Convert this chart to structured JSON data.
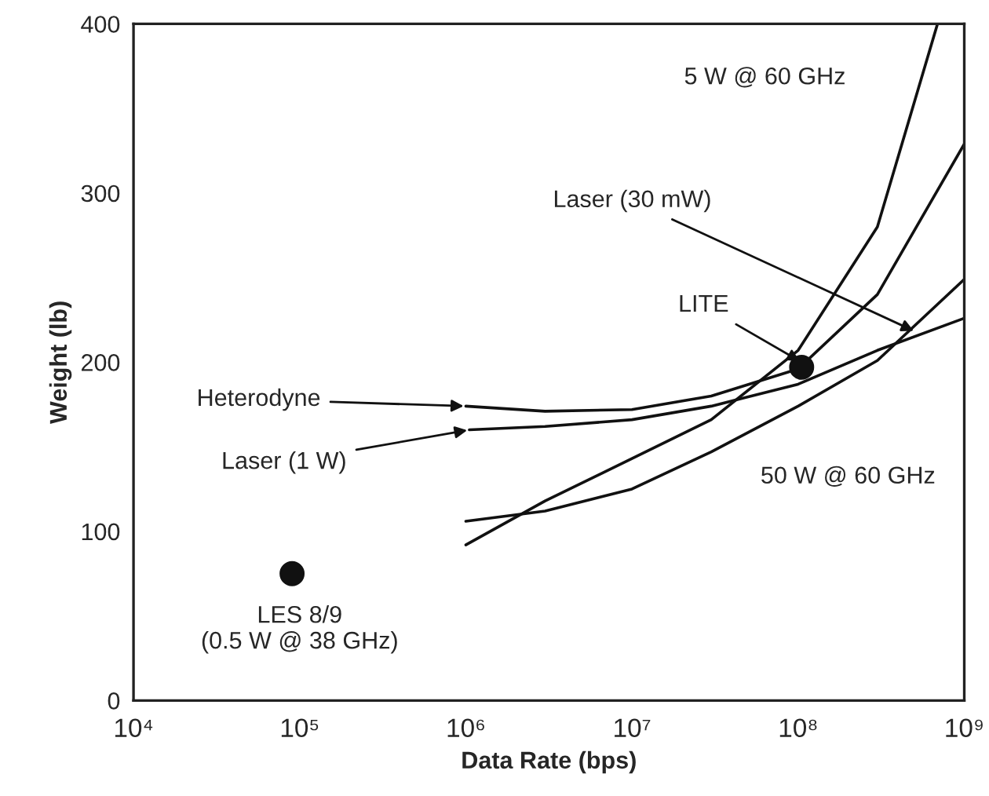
{
  "chart_data": {
    "type": "line",
    "xlabel": "Data Rate (bps)",
    "ylabel": "Weight (lb)",
    "log": "x",
    "grid": false,
    "legend": false,
    "xlim": [
      10000,
      1000000000
    ],
    "xticks": [
      {
        "value": 10000,
        "label": "10⁴"
      },
      {
        "value": 100000,
        "label": "10⁵"
      },
      {
        "value": 1000000,
        "label": "10⁶"
      },
      {
        "value": 10000000,
        "label": "10⁷"
      },
      {
        "value": 100000000,
        "label": "10⁸"
      },
      {
        "value": 1000000000,
        "label": "10⁹"
      }
    ],
    "ylim": [
      0,
      400
    ],
    "yticks": [
      0,
      100,
      200,
      300,
      400
    ],
    "series": [
      {
        "color": "#111111",
        "x": [
          1000000,
          3000000,
          10000000,
          30000000,
          100000000,
          300000000,
          1000000000
        ],
        "values": [
          174,
          171,
          172,
          180,
          196,
          240,
          329
        ]
      },
      {
        "color": "#111111",
        "x": [
          1050000,
          3000000,
          10000000,
          30000000,
          100000000,
          300000000,
          1000000000
        ],
        "values": [
          160,
          162,
          166,
          174,
          187,
          207,
          226
        ]
      },
      {
        "color": "#111111",
        "x": [
          1000000,
          3000000,
          10000000,
          30000000,
          100000000,
          300000000,
          690000000
        ],
        "values": [
          92,
          118,
          143,
          166,
          207,
          280,
          400
        ]
      },
      {
        "color": "#111111",
        "x": [
          1000000,
          3000000,
          10000000,
          30000000,
          100000000,
          300000000,
          1000000000
        ],
        "values": [
          106,
          112,
          125,
          147,
          174,
          201,
          249
        ]
      },
      {
        "type": "scatter",
        "color": "#111111",
        "marker": "circle",
        "x": [
          90000,
          105000000
        ],
        "values": [
          75,
          197
        ]
      }
    ],
    "annotations": [
      "5 W @ 60 GHz",
      {
        "text": "Laser (30 mW)",
        "x": 510000000,
        "y": 218
      },
      {
        "text": "LITE",
        "x": 105000000,
        "y": 200
      },
      {
        "text": "Heterodyne",
        "x": 1000000,
        "y": 174
      },
      {
        "text": "Laser (1 W)",
        "x": 1050000,
        "y": 160
      },
      "50 W @ 60 GHz",
      "LES 8/9\n(0.5 W @ 38 GHz)"
    ]
  }
}
